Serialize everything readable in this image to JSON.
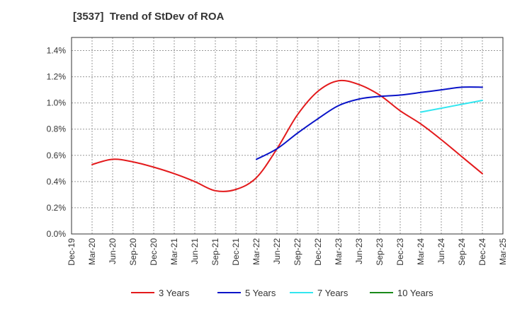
{
  "chart_data": {
    "type": "line",
    "title": "[3537]  Trend of StDev of ROA",
    "xlabel": "",
    "ylabel": "",
    "ylim": [
      0,
      1.5
    ],
    "y_ticks": [
      0,
      0.2,
      0.4,
      0.6,
      0.8,
      1.0,
      1.2,
      1.4
    ],
    "y_tick_labels": [
      "0.0%",
      "0.2%",
      "0.4%",
      "0.6%",
      "0.8%",
      "1.0%",
      "1.2%",
      "1.4%"
    ],
    "x_tick_labels": [
      "Dec-19",
      "Mar-20",
      "Jun-20",
      "Sep-20",
      "Dec-20",
      "Mar-21",
      "Jun-21",
      "Sep-21",
      "Dec-21",
      "Mar-22",
      "Jun-22",
      "Sep-22",
      "Dec-22",
      "Mar-23",
      "Jun-23",
      "Sep-23",
      "Dec-23",
      "Mar-24",
      "Jun-24",
      "Sep-24",
      "Dec-24",
      "Mar-25"
    ],
    "grid": true,
    "legend_position": "bottom",
    "series": [
      {
        "name": "3 Years",
        "color": "#e31a1c",
        "x": [
          "Mar-20",
          "Jun-20",
          "Sep-20",
          "Dec-20",
          "Mar-21",
          "Jun-21",
          "Sep-21",
          "Dec-21",
          "Mar-22",
          "Jun-22",
          "Sep-22",
          "Dec-22",
          "Mar-23",
          "Jun-23",
          "Sep-23",
          "Dec-23",
          "Mar-24",
          "Jun-24",
          "Sep-24",
          "Dec-24"
        ],
        "values": [
          0.53,
          0.57,
          0.55,
          0.51,
          0.46,
          0.4,
          0.33,
          0.34,
          0.43,
          0.65,
          0.91,
          1.09,
          1.17,
          1.14,
          1.06,
          0.94,
          0.84,
          0.72,
          0.59,
          0.46
        ]
      },
      {
        "name": "5 Years",
        "color": "#0a14c8",
        "x": [
          "Mar-22",
          "Jun-22",
          "Sep-22",
          "Dec-22",
          "Mar-23",
          "Jun-23",
          "Sep-23",
          "Dec-23",
          "Mar-24",
          "Jun-24",
          "Sep-24",
          "Dec-24"
        ],
        "values": [
          0.57,
          0.65,
          0.77,
          0.88,
          0.98,
          1.03,
          1.05,
          1.06,
          1.08,
          1.1,
          1.12,
          1.12
        ]
      },
      {
        "name": "7 Years",
        "color": "#33e6f0",
        "x": [
          "Mar-24",
          "Jun-24",
          "Sep-24",
          "Dec-24"
        ],
        "values": [
          0.93,
          0.96,
          0.99,
          1.02
        ]
      },
      {
        "name": "10 Years",
        "color": "#1a8a1a",
        "x": [],
        "values": []
      }
    ]
  }
}
